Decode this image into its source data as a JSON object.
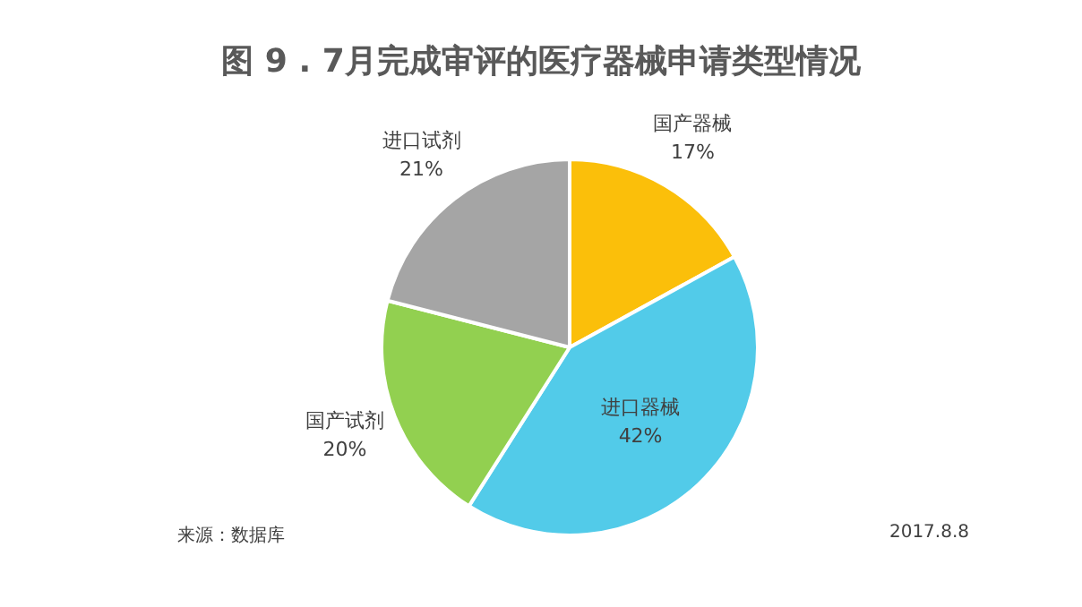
{
  "chart_data": {
    "type": "pie",
    "title": "图 9 . 7月完成审评的医疗器械申请类型情况",
    "categories": [
      "国产器械",
      "进口器械",
      "国产试剂",
      "进口试剂"
    ],
    "values": [
      17,
      42,
      20,
      21
    ],
    "colors": [
      "#fbbf0a",
      "#52cbe9",
      "#92d050",
      "#a5a5a5"
    ],
    "value_labels": [
      "17%",
      "42%",
      "20%",
      "21%"
    ],
    "legend": false,
    "annotations": [
      "来源：数据库",
      "2017.8.8"
    ]
  }
}
